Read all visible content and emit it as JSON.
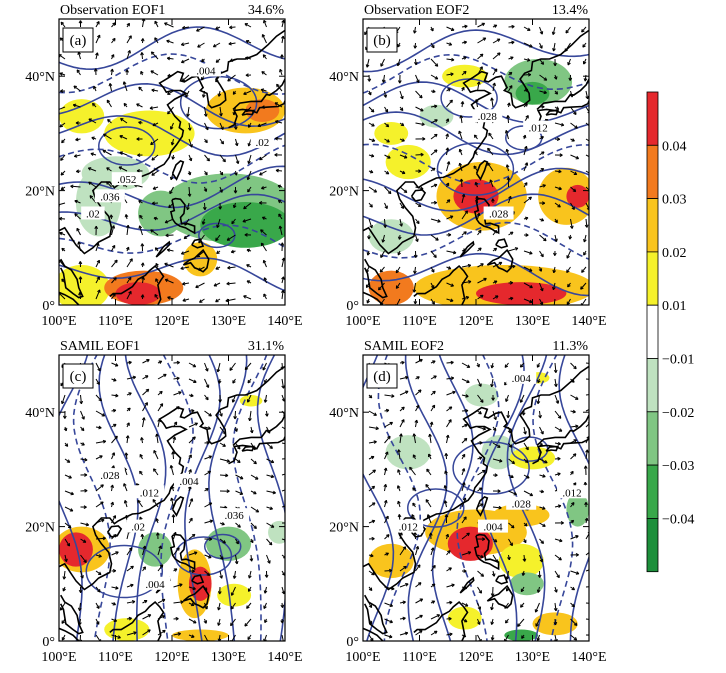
{
  "panels": [
    {
      "id": "a",
      "title": "Observation EOF1",
      "percent": "34.6%",
      "letter": "(a)",
      "contour_labels": [
        ".004",
        ".02",
        ".052",
        ".036",
        ".02"
      ],
      "shading": [
        {
          "lon": 104,
          "lat": 33,
          "rx": 4,
          "ry": 3,
          "level": 0.015
        },
        {
          "lon": 116,
          "lat": 30,
          "rx": 8,
          "ry": 4,
          "level": 0.018
        },
        {
          "lon": 133,
          "lat": 34,
          "rx": 7,
          "ry": 4,
          "level": 0.025
        },
        {
          "lon": 136,
          "lat": 34,
          "rx": 3,
          "ry": 2,
          "level": 0.035
        },
        {
          "lon": 110,
          "lat": 23,
          "rx": 6,
          "ry": 3,
          "level": -0.015
        },
        {
          "lon": 107,
          "lat": 18,
          "rx": 4,
          "ry": 6,
          "level": -0.015
        },
        {
          "lon": 130,
          "lat": 17,
          "rx": 12,
          "ry": 6,
          "level": -0.025
        },
        {
          "lon": 133,
          "lat": 14,
          "rx": 8,
          "ry": 4,
          "level": -0.035
        },
        {
          "lon": 118,
          "lat": 16,
          "rx": 4,
          "ry": 4,
          "level": -0.02
        },
        {
          "lon": 104,
          "lat": 3,
          "rx": 5,
          "ry": 4,
          "level": 0.015
        },
        {
          "lon": 115,
          "lat": 3,
          "rx": 7,
          "ry": 3,
          "level": 0.03
        },
        {
          "lon": 114,
          "lat": 2,
          "rx": 4,
          "ry": 2,
          "level": 0.045
        },
        {
          "lon": 125,
          "lat": 8,
          "rx": 3,
          "ry": 3,
          "level": 0.02
        }
      ]
    },
    {
      "id": "b",
      "title": "Observation EOF2",
      "percent": "13.4%",
      "letter": "(b)",
      "contour_labels": [
        ".028",
        ".012",
        ".028"
      ],
      "shading": [
        {
          "lon": 118,
          "lat": 40,
          "rx": 4,
          "ry": 2,
          "level": 0.015
        },
        {
          "lon": 131,
          "lat": 39,
          "rx": 6,
          "ry": 4,
          "level": -0.02
        },
        {
          "lon": 130,
          "lat": 37,
          "rx": 3,
          "ry": 2,
          "level": -0.035
        },
        {
          "lon": 113,
          "lat": 33,
          "rx": 3,
          "ry": 2,
          "level": -0.015
        },
        {
          "lon": 105,
          "lat": 30,
          "rx": 3,
          "ry": 2,
          "level": 0.015
        },
        {
          "lon": 121,
          "lat": 19,
          "rx": 8,
          "ry": 6,
          "level": 0.025
        },
        {
          "lon": 120,
          "lat": 19,
          "rx": 4,
          "ry": 3,
          "level": 0.045
        },
        {
          "lon": 108,
          "lat": 25,
          "rx": 4,
          "ry": 3,
          "level": 0.015
        },
        {
          "lon": 136,
          "lat": 19,
          "rx": 5,
          "ry": 5,
          "level": 0.025
        },
        {
          "lon": 138,
          "lat": 19,
          "rx": 2,
          "ry": 2,
          "level": 0.045
        },
        {
          "lon": 105,
          "lat": 12,
          "rx": 4,
          "ry": 3,
          "level": -0.015
        },
        {
          "lon": 125,
          "lat": 3,
          "rx": 16,
          "ry": 4,
          "level": 0.025
        },
        {
          "lon": 128,
          "lat": 2,
          "rx": 8,
          "ry": 2,
          "level": 0.045
        },
        {
          "lon": 105,
          "lat": 3,
          "rx": 4,
          "ry": 3,
          "level": 0.03
        }
      ]
    },
    {
      "id": "c",
      "title": "SAMIL EOF1",
      "percent": "31.1%",
      "letter": "(c)",
      "contour_labels": [
        ".028",
        ".012",
        ".004",
        ".036",
        ".02",
        ".004"
      ],
      "shading": [
        {
          "lon": 134,
          "lat": 42,
          "rx": 2,
          "ry": 1,
          "level": 0.015
        },
        {
          "lon": 104,
          "lat": 16,
          "rx": 5,
          "ry": 4,
          "level": 0.025
        },
        {
          "lon": 103,
          "lat": 16,
          "rx": 3,
          "ry": 3,
          "level": 0.045
        },
        {
          "lon": 117,
          "lat": 16,
          "rx": 3,
          "ry": 3,
          "level": -0.02
        },
        {
          "lon": 130,
          "lat": 17,
          "rx": 4,
          "ry": 3,
          "level": -0.025
        },
        {
          "lon": 139,
          "lat": 19,
          "rx": 2,
          "ry": 2,
          "level": -0.015
        },
        {
          "lon": 124,
          "lat": 10,
          "rx": 3,
          "ry": 6,
          "level": 0.025
        },
        {
          "lon": 125,
          "lat": 10,
          "rx": 2,
          "ry": 3,
          "level": 0.045
        },
        {
          "lon": 131,
          "lat": 8,
          "rx": 3,
          "ry": 2,
          "level": 0.015
        },
        {
          "lon": 112,
          "lat": 2,
          "rx": 4,
          "ry": 2,
          "level": 0.015
        },
        {
          "lon": 125,
          "lat": 1,
          "rx": 5,
          "ry": 1,
          "level": 0.025
        }
      ]
    },
    {
      "id": "d",
      "title": "SAMIL EOF2",
      "percent": "11.3%",
      "letter": "(d)",
      "contour_labels": [
        ".012",
        ".004",
        ".028",
        ".012",
        ".004"
      ],
      "shading": [
        {
          "lon": 131,
          "lat": 46,
          "rx": 2,
          "ry": 1,
          "level": 0.015
        },
        {
          "lon": 121,
          "lat": 43,
          "rx": 3,
          "ry": 2,
          "level": -0.015
        },
        {
          "lon": 108,
          "lat": 33,
          "rx": 4,
          "ry": 3,
          "level": -0.015
        },
        {
          "lon": 124,
          "lat": 33,
          "rx": 3,
          "ry": 3,
          "level": -0.015
        },
        {
          "lon": 130,
          "lat": 32,
          "rx": 4,
          "ry": 2,
          "level": 0.015
        },
        {
          "lon": 120,
          "lat": 19,
          "rx": 9,
          "ry": 4,
          "level": 0.025
        },
        {
          "lon": 119,
          "lat": 17,
          "rx": 4,
          "ry": 3,
          "level": 0.045
        },
        {
          "lon": 128,
          "lat": 22,
          "rx": 5,
          "ry": 2,
          "level": 0.025
        },
        {
          "lon": 138,
          "lat": 23,
          "rx": 2,
          "ry": 3,
          "level": -0.02
        },
        {
          "lon": 105,
          "lat": 14,
          "rx": 4,
          "ry": 3,
          "level": 0.02
        },
        {
          "lon": 128,
          "lat": 14,
          "rx": 4,
          "ry": 3,
          "level": 0.015
        },
        {
          "lon": 129,
          "lat": 10,
          "rx": 3,
          "ry": 2,
          "level": -0.02
        },
        {
          "lon": 134,
          "lat": 3,
          "rx": 4,
          "ry": 2,
          "level": 0.02
        },
        {
          "lon": 128,
          "lat": 1,
          "rx": 3,
          "ry": 1,
          "level": -0.035
        },
        {
          "lon": 118,
          "lat": 4,
          "rx": 3,
          "ry": 2,
          "level": 0.015
        }
      ]
    }
  ],
  "x_ticks": [
    "100°E",
    "110°E",
    "120°E",
    "130°E",
    "140°E"
  ],
  "y_ticks": [
    "0°",
    "20°N",
    "40°N"
  ],
  "map_extent": {
    "lon_min": 100,
    "lon_max": 140,
    "lat_min": 0,
    "lat_max": 50
  },
  "colorbar": {
    "labels": [
      "0.04",
      "0.03",
      "0.02",
      "0.01",
      "−0.01",
      "−0.02",
      "−0.03",
      "−0.04"
    ],
    "colors": [
      "#e5282d",
      "#f27a1e",
      "#f9c41d",
      "#f5f12b",
      "#ffffff",
      "#bfe2c0",
      "#80c683",
      "#39a84a",
      "#1d8f3b"
    ]
  },
  "line_color": "#37479a",
  "coast_color": "#000000"
}
